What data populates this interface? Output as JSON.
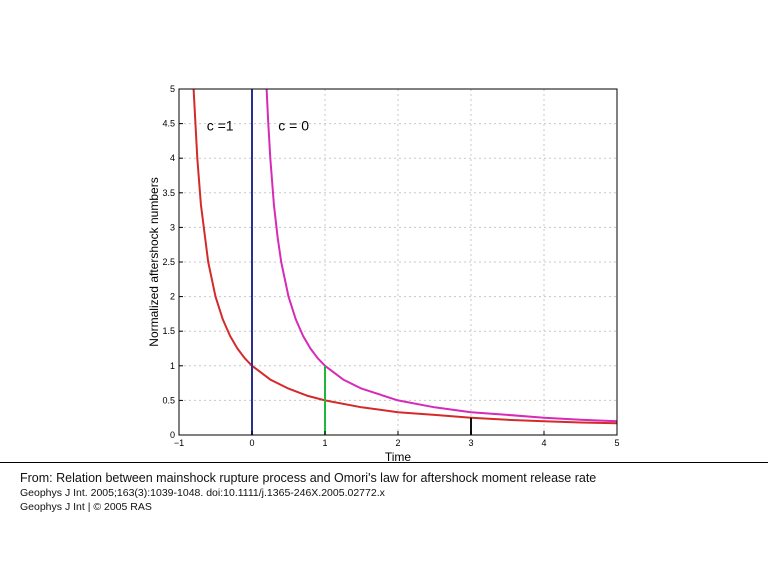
{
  "chart_data": {
    "type": "line",
    "xlabel": "Time",
    "ylabel": "Normalized aftershock numbers",
    "xlim": [
      -1,
      5
    ],
    "ylim": [
      0,
      5
    ],
    "xticks": [
      "−1",
      "0",
      "1",
      "2",
      "3",
      "4",
      "5"
    ],
    "yticks": [
      "0",
      "0.5",
      "1",
      "1.5",
      "2",
      "2.5",
      "3",
      "3.5",
      "4",
      "4.5",
      "5"
    ],
    "grid": true,
    "series": [
      {
        "color": "#d42a2a",
        "x": [
          -0.8,
          -0.75,
          -0.7,
          -0.6,
          -0.5,
          -0.4,
          -0.3,
          -0.2,
          -0.1,
          0,
          0.25,
          0.5,
          0.75,
          1,
          1.5,
          2,
          2.5,
          3,
          3.5,
          4,
          4.5,
          5
        ],
        "y": [
          5,
          4,
          3.33,
          2.5,
          2,
          1.67,
          1.43,
          1.25,
          1.11,
          1,
          0.8,
          0.67,
          0.57,
          0.5,
          0.4,
          0.33,
          0.29,
          0.25,
          0.22,
          0.2,
          0.18,
          0.17
        ]
      },
      {
        "color": "#d62ab8",
        "x": [
          0.2,
          0.22,
          0.25,
          0.3,
          0.35,
          0.4,
          0.5,
          0.6,
          0.7,
          0.8,
          0.9,
          1,
          1.25,
          1.5,
          2,
          2.5,
          3,
          3.5,
          4,
          4.5,
          5
        ],
        "y": [
          5,
          4.55,
          4,
          3.33,
          2.86,
          2.5,
          2,
          1.67,
          1.43,
          1.25,
          1.11,
          1,
          0.8,
          0.67,
          0.5,
          0.4,
          0.33,
          0.29,
          0.25,
          0.22,
          0.2
        ]
      }
    ],
    "vertical_lines": [
      {
        "x": 0,
        "y0": 0,
        "y1": 5,
        "color": "#2b2f8f"
      },
      {
        "x": 1,
        "y0": 0,
        "y1": 1,
        "color": "#1fb83a"
      },
      {
        "x": 3,
        "y0": 0,
        "y1": 0.25,
        "color": "#111111"
      }
    ],
    "annotations": [
      {
        "text": "c =1",
        "x": -0.62,
        "y": 4.4
      },
      {
        "text": "c = 0",
        "x": 0.36,
        "y": 4.4
      }
    ]
  },
  "caption": {
    "title": "From: Relation between mainshock rupture process and Omori's law for aftershock moment release rate",
    "citation": "Geophys J Int. 2005;163(3):1039-1048. doi:10.1111/j.1365-246X.2005.02772.x",
    "copyright": "Geophys J Int | © 2005 RAS"
  }
}
